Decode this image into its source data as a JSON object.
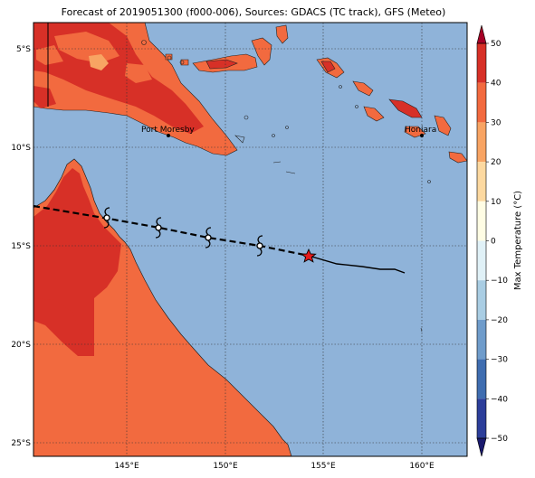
{
  "title": "Forecast of 2019051300 (f000-006), Sources: GDACS (TC track), GFS (Meteo)",
  "map": {
    "lat_labels": [
      "5°S",
      "10°S",
      "15°S",
      "20°S",
      "25°S"
    ],
    "lon_labels": [
      "145°E",
      "150°E",
      "155°E",
      "160°E"
    ],
    "ocean_color": "#8fb3d9",
    "cities": [
      {
        "name": "Port Moresby"
      },
      {
        "name": "Honiara"
      }
    ],
    "track_past_style": "dashed",
    "current_position_marker": "red-star",
    "forecast_marker": "tropical-cyclone-symbol"
  },
  "colorbar": {
    "label": "Max Temperature (°C)",
    "ticks": [
      "50",
      "40",
      "30",
      "20",
      "10",
      "0",
      "−10",
      "−20",
      "−30",
      "−40",
      "−50"
    ],
    "colors": [
      "#1a1a6e",
      "#2c3e9a",
      "#3f6db0",
      "#6f9ccb",
      "#a9cde3",
      "#e0f1f7",
      "#fffde4",
      "#fdd9a0",
      "#f8a463",
      "#f26a3f",
      "#d73027",
      "#a50026"
    ]
  }
}
